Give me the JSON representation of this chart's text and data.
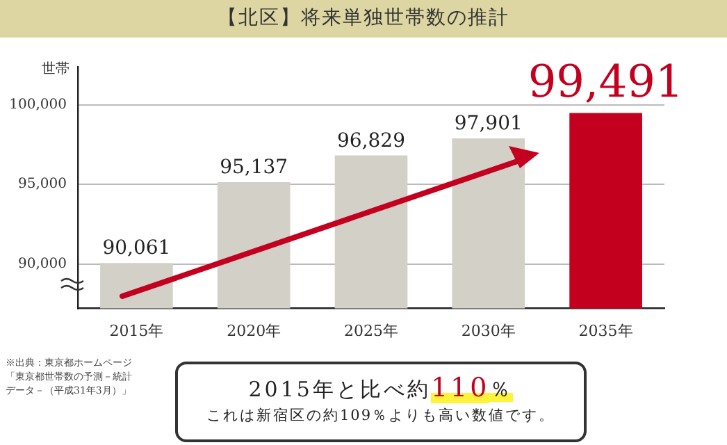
{
  "chart_data": {
    "type": "bar",
    "title": "【北区】将来単独世帯数の推計",
    "ylabel": "世帯",
    "categories": [
      "2015年",
      "2020年",
      "2025年",
      "2030年",
      "2035年"
    ],
    "values": [
      90061,
      95137,
      96829,
      97901,
      99491
    ],
    "colors": [
      "#d3d0c8",
      "#d3d0c8",
      "#d3d0c8",
      "#d3d0c8",
      "#c4001f"
    ],
    "value_labels": [
      "90,061",
      "95,137",
      "96,829",
      "97,901",
      "99,491"
    ],
    "ylim": [
      87200,
      102400
    ],
    "yticks": [
      {
        "value": 90000,
        "label": "90,000"
      },
      {
        "value": 95000,
        "label": "95,000"
      },
      {
        "value": 100000,
        "label": "100,000"
      }
    ],
    "grid": "y",
    "annotations": [
      "※出典：東京都ホームページ「東京都世帯数の予測－統計データ－（平成31年3月）」",
      "2015年と比べ約110％",
      "これは新宿区の約109％よりも高い数値です。"
    ]
  }
}
